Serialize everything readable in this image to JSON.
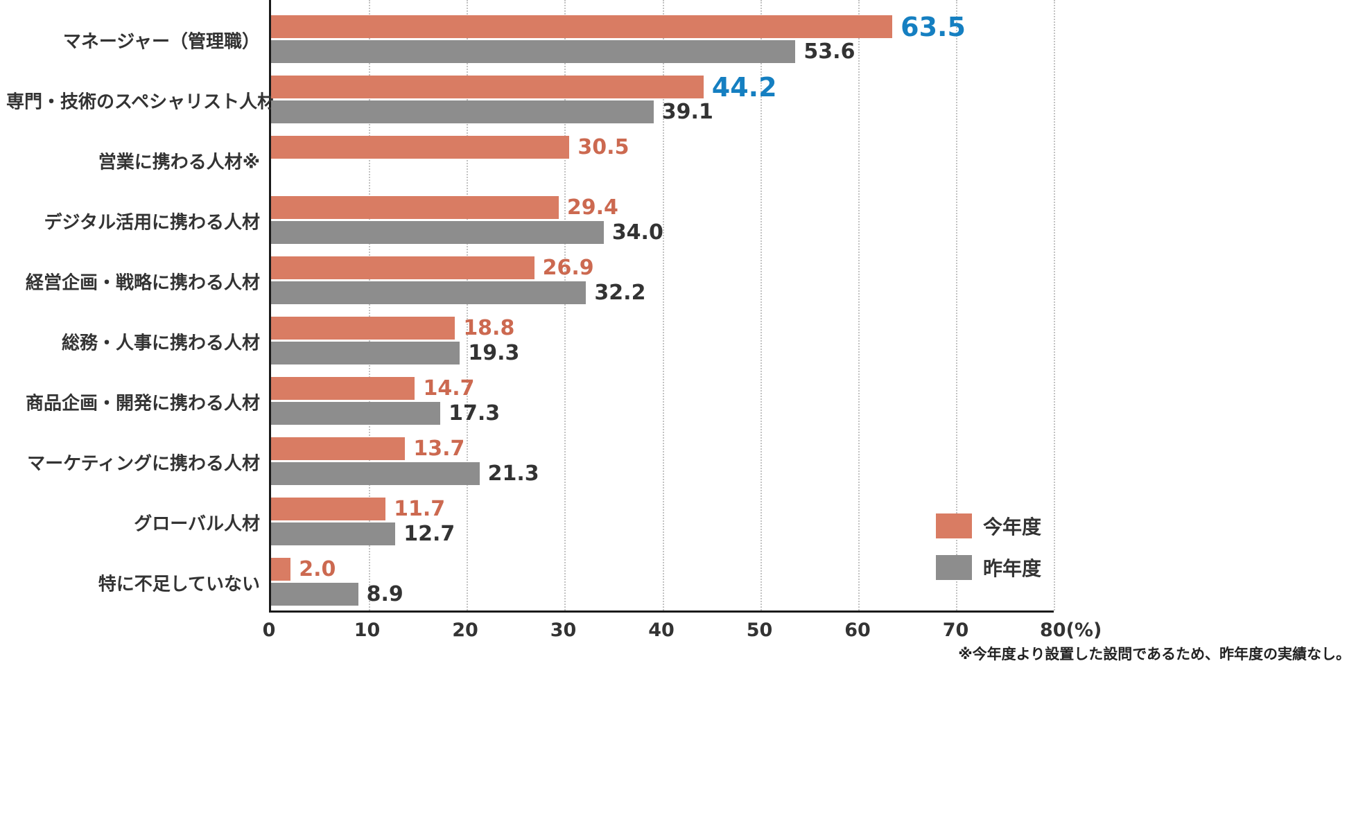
{
  "chart_data": {
    "type": "bar",
    "orientation": "horizontal",
    "title": "",
    "xlabel": "(%)",
    "ylabel": "",
    "xlim": [
      0,
      80
    ],
    "xticks": [
      0,
      10,
      20,
      30,
      40,
      50,
      60,
      70,
      80
    ],
    "xtick_labels": [
      "0",
      "10",
      "20",
      "30",
      "40",
      "50",
      "60",
      "70",
      "80(%)"
    ],
    "grid": "dotted-vertical",
    "legend_position": "bottom-right-inside",
    "legend": [
      {
        "name": "今年度",
        "color": "#d97c63"
      },
      {
        "name": "昨年度",
        "color": "#8d8d8d"
      }
    ],
    "series_names": [
      "今年度",
      "昨年度"
    ],
    "categories": [
      {
        "label": "マネージャー（管理職）",
        "this_year": 63.5,
        "last_year": 53.6,
        "highlight": true
      },
      {
        "label": "専門・技術のスペシャリスト人材",
        "this_year": 44.2,
        "last_year": 39.1,
        "highlight": true
      },
      {
        "label": "営業に携わる人材※",
        "this_year": 30.5,
        "last_year": null,
        "highlight": false
      },
      {
        "label": "デジタル活用に携わる人材",
        "this_year": 29.4,
        "last_year": 34.0,
        "highlight": false
      },
      {
        "label": "経営企画・戦略に携わる人材",
        "this_year": 26.9,
        "last_year": 32.2,
        "highlight": false
      },
      {
        "label": "総務・人事に携わる人材",
        "this_year": 18.8,
        "last_year": 19.3,
        "highlight": false
      },
      {
        "label": "商品企画・開発に携わる人材",
        "this_year": 14.7,
        "last_year": 17.3,
        "highlight": false
      },
      {
        "label": "マーケティングに携わる人材",
        "this_year": 13.7,
        "last_year": 21.3,
        "highlight": false
      },
      {
        "label": "グローバル人材",
        "this_year": 11.7,
        "last_year": 12.7,
        "highlight": false
      },
      {
        "label": "特に不足していない",
        "this_year": 2.0,
        "last_year": 8.9,
        "highlight": false
      }
    ],
    "footnote": "※今年度より設置した設問であるため、昨年度の実績なし。",
    "colors": {
      "this_year": "#d97c63",
      "last_year": "#8d8d8d",
      "this_year_value": "#cc6950",
      "last_year_value": "#333333",
      "highlight_value": "#157fc1",
      "axis": "#1a1a1a",
      "gridline": "#c2c2c2"
    }
  }
}
